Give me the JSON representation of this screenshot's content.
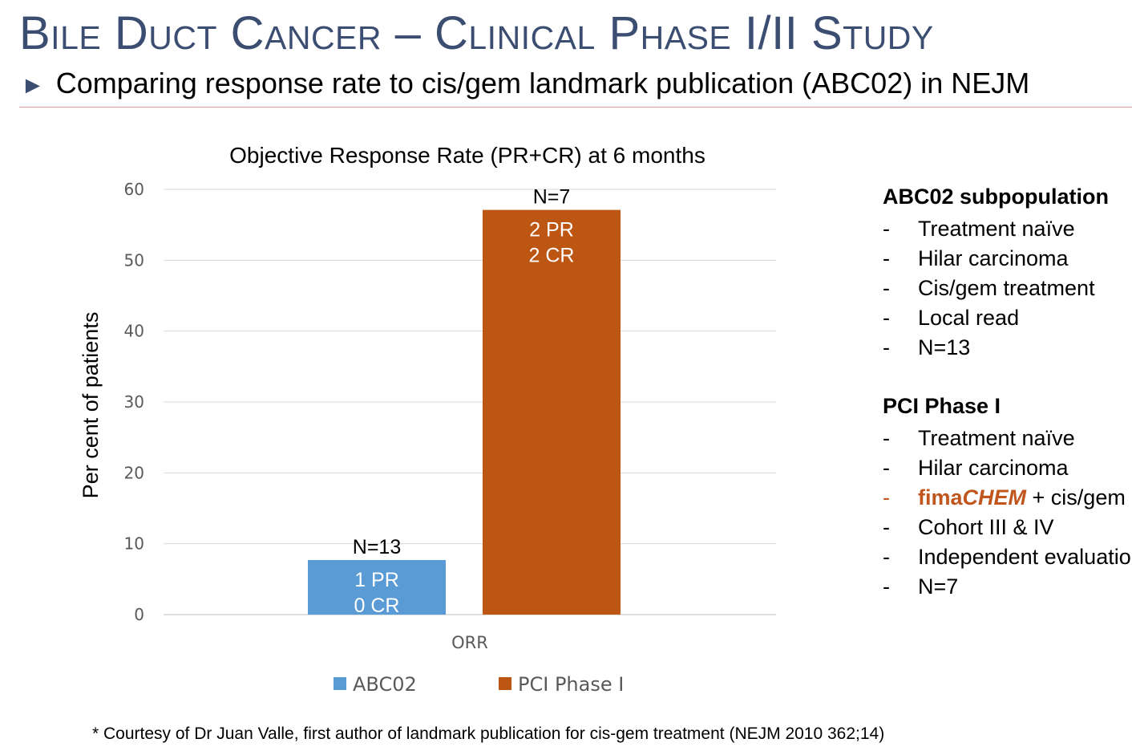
{
  "slide": {
    "title": "Bile Duct Cancer – Clinical Phase I/II Study",
    "subtitle": "Comparing response rate to cis/gem landmark publication (ABC02) in NEJM",
    "bullet_icon": "triangle-right-icon"
  },
  "chart_data": {
    "type": "bar",
    "title": "Objective Response Rate (PR+CR) at 6 months",
    "xlabel": "",
    "ylabel": "Per cent of patients",
    "ylim": [
      0,
      60
    ],
    "yticks": [
      0,
      10,
      20,
      30,
      40,
      50,
      60
    ],
    "grid": true,
    "legend_position": "bottom",
    "categories": [
      "ORR"
    ],
    "series": [
      {
        "name": "ABC02",
        "values": [
          7.7
        ],
        "color": "#5b9bd5",
        "top_label": "N=13",
        "inner_labels": [
          "1 PR",
          "0 CR"
        ]
      },
      {
        "name": "PCI Phase I",
        "values": [
          57.1
        ],
        "color": "#bd5613",
        "top_label": "N=7",
        "inner_labels": [
          "2 PR",
          "2 CR"
        ]
      }
    ]
  },
  "sidebar": {
    "groups": [
      {
        "heading": "ABC02 subpopulation",
        "items": [
          {
            "text": "Treatment naïve"
          },
          {
            "text": "Hilar carcinoma"
          },
          {
            "text": "Cis/gem treatment"
          },
          {
            "text": "Local read"
          },
          {
            "text": "N=13"
          }
        ]
      },
      {
        "heading": "PCI Phase I",
        "items": [
          {
            "text": "Treatment naïve"
          },
          {
            "text": "Hilar carcinoma"
          },
          {
            "brand_a": "fima",
            "brand_b": "CHEM",
            "text": " + cis/gem"
          },
          {
            "text": "Cohort III & IV"
          },
          {
            "text": "Independent evaluation"
          },
          {
            "text": "N=7"
          }
        ]
      }
    ],
    "dash": "-",
    "accent_color": "#c0561d"
  },
  "footnote": "* Courtesy of Dr Juan Valle, first author of landmark publication for cis-gem treatment (NEJM 2010 362;14)"
}
